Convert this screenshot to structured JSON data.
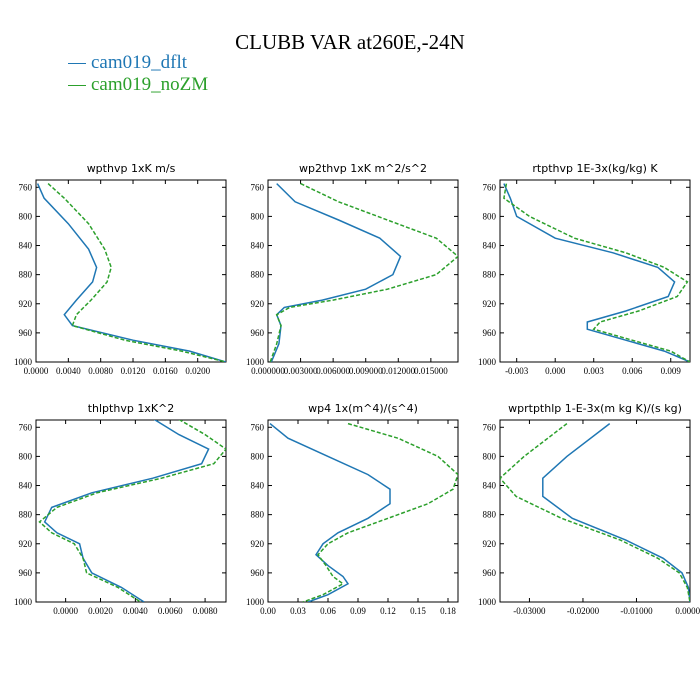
{
  "title": "CLUBB VAR at260E,-24N",
  "colors": {
    "dflt": "#1f77b4",
    "noZM": "#2ca02c"
  },
  "legend": [
    {
      "label": "cam019_dflt",
      "color": "#1f77b4",
      "dashed": false
    },
    {
      "label": "cam019_noZM",
      "color": "#2ca02c",
      "dashed": true
    }
  ],
  "chart_data": [
    {
      "type": "line",
      "title": "wpthvp  1xK m/s",
      "xlim": [
        0.0,
        0.0235
      ],
      "ylim": [
        1000,
        750
      ],
      "xticks": [
        0.0,
        0.004,
        0.008,
        0.012,
        0.016,
        0.02
      ],
      "xtick_labels": [
        "0.0000",
        "0.0040",
        "0.0080",
        "0.0120",
        "0.0160",
        "0.0200"
      ],
      "yticks": [
        760,
        800,
        840,
        880,
        920,
        960,
        1000
      ],
      "ytick_labels": [
        "760",
        "800",
        "840",
        "880",
        "920",
        "960",
        "1000"
      ],
      "series": [
        {
          "name": "cam019_dflt",
          "x": [
            0.0002,
            0.001,
            0.004,
            0.0065,
            0.0075,
            0.007,
            0.005,
            0.0035,
            0.0045,
            0.012,
            0.019,
            0.0235
          ],
          "y": [
            755,
            775,
            810,
            845,
            870,
            890,
            915,
            935,
            950,
            970,
            985,
            1000
          ]
        },
        {
          "name": "cam019_noZM",
          "x": [
            0.0015,
            0.0035,
            0.0065,
            0.0085,
            0.0093,
            0.0088,
            0.0068,
            0.005,
            0.0045,
            0.011,
            0.018,
            0.0235
          ],
          "y": [
            755,
            775,
            810,
            845,
            870,
            890,
            915,
            935,
            950,
            970,
            985,
            1000
          ]
        }
      ]
    },
    {
      "type": "line",
      "title": "wp2thvp  1xK m^2/s^2",
      "xlim": [
        0.0,
        0.0175
      ],
      "ylim": [
        1000,
        750
      ],
      "xticks": [
        0.0,
        0.003,
        0.006,
        0.009,
        0.012,
        0.015
      ],
      "xtick_labels": [
        "0.000000",
        "0.003000",
        "0.006000",
        "0.009000",
        "0.012000",
        "0.015000"
      ],
      "yticks": [
        760,
        800,
        840,
        880,
        920,
        960,
        1000
      ],
      "ytick_labels": [
        "760",
        "800",
        "840",
        "880",
        "920",
        "960",
        "1000"
      ],
      "series": [
        {
          "name": "cam019_dflt",
          "x": [
            0.0008,
            0.0025,
            0.0065,
            0.0103,
            0.0122,
            0.0115,
            0.009,
            0.005,
            0.0015,
            0.0008,
            0.0012,
            0.001,
            0.0003
          ],
          "y": [
            755,
            780,
            805,
            830,
            855,
            880,
            900,
            915,
            925,
            935,
            950,
            975,
            1000
          ]
        },
        {
          "name": "cam019_noZM",
          "x": [
            0.003,
            0.0065,
            0.011,
            0.0155,
            0.0175,
            0.0155,
            0.011,
            0.006,
            0.002,
            0.0008,
            0.0012,
            0.0008,
            0.0002
          ],
          "y": [
            755,
            780,
            805,
            830,
            855,
            880,
            900,
            915,
            925,
            935,
            950,
            975,
            1000
          ]
        }
      ]
    },
    {
      "type": "line",
      "title": "rtpthvp  1E-3x(kg/kg) K",
      "xlim": [
        -0.0043,
        0.0105
      ],
      "ylim": [
        1000,
        750
      ],
      "xticks": [
        -0.003,
        0.0,
        0.003,
        0.006,
        0.009
      ],
      "xtick_labels": [
        "-0.003",
        "0.000",
        "0.003",
        "0.006",
        "0.009"
      ],
      "yticks": [
        760,
        800,
        840,
        880,
        920,
        960,
        1000
      ],
      "ytick_labels": [
        "760",
        "800",
        "840",
        "880",
        "920",
        "960",
        "1000"
      ],
      "series": [
        {
          "name": "cam019_dflt",
          "x": [
            -0.004,
            -0.0035,
            -0.003,
            0.0,
            0.0045,
            0.008,
            0.0093,
            0.0088,
            0.0055,
            0.0025,
            0.0025,
            0.0055,
            0.0085,
            0.0105
          ],
          "y": [
            755,
            775,
            800,
            830,
            850,
            870,
            890,
            910,
            930,
            945,
            955,
            970,
            985,
            1000
          ]
        },
        {
          "name": "cam019_noZM",
          "x": [
            -0.0038,
            -0.004,
            -0.002,
            0.0015,
            0.0055,
            0.0085,
            0.0103,
            0.0095,
            0.0065,
            0.0035,
            0.003,
            0.006,
            0.009,
            0.0105
          ],
          "y": [
            755,
            775,
            800,
            830,
            850,
            870,
            890,
            910,
            930,
            945,
            955,
            970,
            985,
            1000
          ]
        }
      ]
    },
    {
      "type": "line",
      "title": "thlpthvp  1xK^2",
      "xlim": [
        -0.0017,
        0.0092
      ],
      "ylim": [
        1000,
        750
      ],
      "xticks": [
        0.0,
        0.002,
        0.004,
        0.006,
        0.008
      ],
      "xtick_labels": [
        "0.0000",
        "0.0020",
        "0.0040",
        "0.0060",
        "0.0080"
      ],
      "yticks": [
        760,
        800,
        840,
        880,
        920,
        960,
        1000
      ],
      "ytick_labels": [
        "760",
        "800",
        "840",
        "880",
        "920",
        "960",
        "1000"
      ],
      "series": [
        {
          "name": "cam019_dflt",
          "x": [
            0.0048,
            0.0065,
            0.0082,
            0.0078,
            0.005,
            0.0015,
            -0.0008,
            -0.0012,
            -0.0005,
            0.0008,
            0.001,
            0.0015,
            0.0032,
            0.0045
          ],
          "y": [
            745,
            770,
            790,
            810,
            830,
            850,
            870,
            890,
            905,
            920,
            940,
            960,
            980,
            1000
          ]
        },
        {
          "name": "cam019_noZM",
          "x": [
            0.0062,
            0.008,
            0.0092,
            0.0085,
            0.0055,
            0.0018,
            -0.0005,
            -0.0015,
            -0.0008,
            0.0005,
            0.001,
            0.0012,
            0.003,
            0.0043
          ],
          "y": [
            745,
            770,
            790,
            810,
            830,
            850,
            870,
            890,
            905,
            920,
            940,
            960,
            980,
            1000
          ]
        }
      ]
    },
    {
      "type": "line",
      "title": "wp4  1x(m^4)/(s^4)",
      "xlim": [
        0.0,
        0.19
      ],
      "ylim": [
        1000,
        750
      ],
      "xticks": [
        0.0,
        0.03,
        0.06,
        0.09,
        0.12,
        0.15,
        0.18
      ],
      "xtick_labels": [
        "0.00",
        "0.03",
        "0.06",
        "0.09",
        "0.12",
        "0.15",
        "0.18"
      ],
      "yticks": [
        760,
        800,
        840,
        880,
        920,
        960,
        1000
      ],
      "ytick_labels": [
        "760",
        "800",
        "840",
        "880",
        "920",
        "960",
        "1000"
      ],
      "series": [
        {
          "name": "cam019_dflt",
          "x": [
            0.002,
            0.02,
            0.06,
            0.1,
            0.122,
            0.122,
            0.1,
            0.07,
            0.055,
            0.048,
            0.06,
            0.075,
            0.08,
            0.06,
            0.04
          ],
          "y": [
            755,
            775,
            800,
            825,
            845,
            865,
            885,
            905,
            920,
            935,
            950,
            965,
            975,
            990,
            1000
          ]
        },
        {
          "name": "cam019_noZM",
          "x": [
            0.08,
            0.13,
            0.17,
            0.19,
            0.185,
            0.16,
            0.12,
            0.08,
            0.06,
            0.05,
            0.058,
            0.065,
            0.075,
            0.055,
            0.035
          ],
          "y": [
            755,
            775,
            800,
            825,
            845,
            865,
            885,
            905,
            920,
            935,
            950,
            965,
            975,
            990,
            1000
          ]
        }
      ]
    },
    {
      "type": "line",
      "title": "wprtpthlp  1-E-3x(m kg K)/(s kg)",
      "xlim": [
        -0.0355,
        0.0
      ],
      "ylim": [
        1000,
        750
      ],
      "xticks": [
        -0.03,
        -0.02,
        -0.01,
        0.0
      ],
      "xtick_labels": [
        "-0.03000",
        "-0.02000",
        "-0.01000",
        "0.00000"
      ],
      "yticks": [
        760,
        800,
        840,
        880,
        920,
        960,
        1000
      ],
      "ytick_labels": [
        "760",
        "800",
        "840",
        "880",
        "920",
        "960",
        "1000"
      ],
      "series": [
        {
          "name": "cam019_dflt",
          "x": [
            -0.015,
            -0.023,
            -0.0275,
            -0.0275,
            -0.022,
            -0.012,
            -0.005,
            -0.0015,
            -0.0003,
            0.0
          ],
          "y": [
            755,
            800,
            830,
            855,
            885,
            915,
            940,
            960,
            980,
            1000
          ]
        },
        {
          "name": "cam019_noZM",
          "x": [
            -0.023,
            -0.031,
            -0.0355,
            -0.0325,
            -0.024,
            -0.013,
            -0.006,
            -0.002,
            -0.0005,
            0.0
          ],
          "y": [
            755,
            800,
            830,
            855,
            885,
            915,
            940,
            960,
            980,
            1000
          ]
        }
      ]
    }
  ]
}
